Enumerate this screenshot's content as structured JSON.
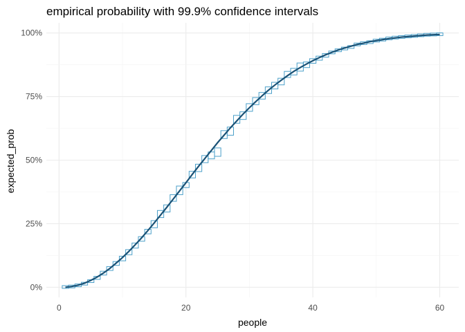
{
  "chart_data": {
    "type": "line",
    "title": "empirical probability with 99.9% confidence intervals",
    "xlabel": "people",
    "ylabel": "expected_prob",
    "xlim": [
      -2,
      63
    ],
    "ylim": [
      -0.04,
      1.04
    ],
    "x_ticks": [
      0,
      20,
      40,
      60
    ],
    "x_tick_labels": [
      "0",
      "20",
      "40",
      "60"
    ],
    "y_ticks": [
      0,
      0.25,
      0.5,
      0.75,
      1
    ],
    "y_tick_labels": [
      "0%",
      "25%",
      "50%",
      "75%",
      "100%"
    ],
    "grid": true,
    "line_color": "#1a5276",
    "box_color": "#4a9fc9",
    "series": [
      {
        "kind": "line",
        "x": [
          1,
          2,
          3,
          4,
          5,
          6,
          7,
          8,
          9,
          10,
          11,
          12,
          13,
          14,
          15,
          16,
          17,
          18,
          19,
          20,
          21,
          22,
          23,
          24,
          25,
          26,
          27,
          28,
          29,
          30,
          31,
          32,
          33,
          34,
          35,
          36,
          37,
          38,
          39,
          40,
          41,
          42,
          43,
          44,
          45,
          46,
          47,
          48,
          49,
          50,
          51,
          52,
          53,
          54,
          55,
          56,
          57,
          58,
          59,
          60
        ],
        "y": [
          0,
          0.003,
          0.008,
          0.016,
          0.027,
          0.04,
          0.056,
          0.074,
          0.095,
          0.117,
          0.141,
          0.167,
          0.194,
          0.223,
          0.253,
          0.284,
          0.315,
          0.347,
          0.379,
          0.411,
          0.444,
          0.476,
          0.507,
          0.538,
          0.569,
          0.598,
          0.627,
          0.654,
          0.681,
          0.706,
          0.73,
          0.753,
          0.775,
          0.795,
          0.814,
          0.832,
          0.849,
          0.864,
          0.878,
          0.891,
          0.903,
          0.914,
          0.924,
          0.933,
          0.941,
          0.948,
          0.955,
          0.96,
          0.966,
          0.97,
          0.974,
          0.978,
          0.981,
          0.984,
          0.986,
          0.988,
          0.99,
          0.992,
          0.993,
          0.994
        ]
      },
      {
        "kind": "ci-box",
        "x": [
          1,
          2,
          3,
          4,
          5,
          6,
          7,
          8,
          9,
          10,
          11,
          12,
          13,
          14,
          15,
          16,
          17,
          18,
          19,
          20,
          21,
          22,
          23,
          24,
          25,
          26,
          27,
          28,
          29,
          30,
          31,
          32,
          33,
          34,
          35,
          36,
          37,
          38,
          39,
          40,
          41,
          42,
          43,
          44,
          45,
          46,
          47,
          48,
          49,
          50,
          51,
          52,
          53,
          54,
          55,
          56,
          57,
          58,
          59,
          60
        ],
        "lo": [
          0,
          0.001,
          0.005,
          0.011,
          0.02,
          0.031,
          0.048,
          0.066,
          0.086,
          0.104,
          0.128,
          0.154,
          0.181,
          0.21,
          0.234,
          0.274,
          0.296,
          0.338,
          0.364,
          0.392,
          0.43,
          0.455,
          0.49,
          0.505,
          0.515,
          0.585,
          0.598,
          0.645,
          0.66,
          0.692,
          0.718,
          0.74,
          0.762,
          0.78,
          0.796,
          0.825,
          0.835,
          0.85,
          0.864,
          0.881,
          0.893,
          0.905,
          0.918,
          0.927,
          0.934,
          0.94,
          0.951,
          0.956,
          0.96,
          0.966,
          0.97,
          0.975,
          0.979,
          0.982,
          0.984,
          0.986,
          0.989,
          0.991,
          0.992,
          0.993
        ],
        "hi": [
          0.002,
          0.005,
          0.01,
          0.017,
          0.028,
          0.043,
          0.063,
          0.081,
          0.101,
          0.122,
          0.148,
          0.174,
          0.199,
          0.228,
          0.262,
          0.302,
          0.324,
          0.364,
          0.398,
          0.412,
          0.456,
          0.484,
          0.518,
          0.532,
          0.548,
          0.616,
          0.63,
          0.676,
          0.69,
          0.722,
          0.746,
          0.766,
          0.788,
          0.806,
          0.822,
          0.849,
          0.861,
          0.882,
          0.886,
          0.899,
          0.909,
          0.919,
          0.929,
          0.937,
          0.944,
          0.95,
          0.959,
          0.964,
          0.968,
          0.974,
          0.978,
          0.982,
          0.985,
          0.987,
          0.989,
          0.991,
          0.993,
          0.995,
          0.996,
          0.997
        ]
      }
    ]
  }
}
